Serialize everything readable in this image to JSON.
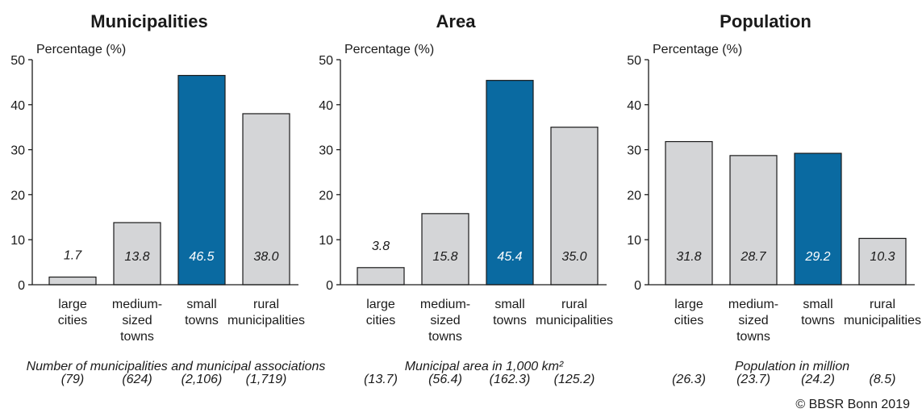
{
  "colors": {
    "highlight": "#0a6aa1",
    "normal": "#d4d5d7",
    "stroke": "#1a1a1a",
    "label_on_highlight": "#ffffff",
    "label_on_normal": "#1a1a1a"
  },
  "categories": [
    [
      "large",
      "cities"
    ],
    [
      "medium-",
      "sized",
      "towns"
    ],
    [
      "small",
      "towns"
    ],
    [
      "rural",
      "municipalities"
    ]
  ],
  "chart_data": [
    {
      "type": "bar",
      "title": "Municipalities",
      "ylabel": "Percentage (%)",
      "ylim": [
        0,
        50
      ],
      "yticks": [
        0,
        10,
        20,
        30,
        40,
        50
      ],
      "categories": [
        "large cities",
        "medium-sized towns",
        "small towns",
        "rural municipalities"
      ],
      "values": [
        1.7,
        13.8,
        46.5,
        38.0
      ],
      "data_labels": [
        "1.7",
        "13.8",
        "46.5",
        "38.0"
      ],
      "highlight_index": 2,
      "note": "Number of municipalities and municipal associations",
      "counts": [
        "(79)",
        "(624)",
        "(2,106)",
        "(1,719)"
      ]
    },
    {
      "type": "bar",
      "title": "Area",
      "ylabel": "Percentage (%)",
      "ylim": [
        0,
        50
      ],
      "yticks": [
        0,
        10,
        20,
        30,
        40,
        50
      ],
      "categories": [
        "large cities",
        "medium-sized towns",
        "small towns",
        "rural municipalities"
      ],
      "values": [
        3.8,
        15.8,
        45.4,
        35.0
      ],
      "data_labels": [
        "3.8",
        "15.8",
        "45.4",
        "35.0"
      ],
      "highlight_index": 2,
      "note": "Municipal area in 1,000 km²",
      "counts": [
        "(13.7)",
        "(56.4)",
        "(162.3)",
        "(125.2)"
      ]
    },
    {
      "type": "bar",
      "title": "Population",
      "ylabel": "Percentage (%)",
      "ylim": [
        0,
        50
      ],
      "yticks": [
        0,
        10,
        20,
        30,
        40,
        50
      ],
      "categories": [
        "large cities",
        "medium-sized towns",
        "small towns",
        "rural municipalities"
      ],
      "values": [
        31.8,
        28.7,
        29.2,
        10.3
      ],
      "data_labels": [
        "31.8",
        "28.7",
        "29.2",
        "10.3"
      ],
      "highlight_index": 2,
      "note": "Population in million",
      "counts": [
        "(26.3)",
        "(23.7)",
        "(24.2)",
        "(8.5)"
      ]
    }
  ],
  "credit": "© BBSR Bonn 2019"
}
